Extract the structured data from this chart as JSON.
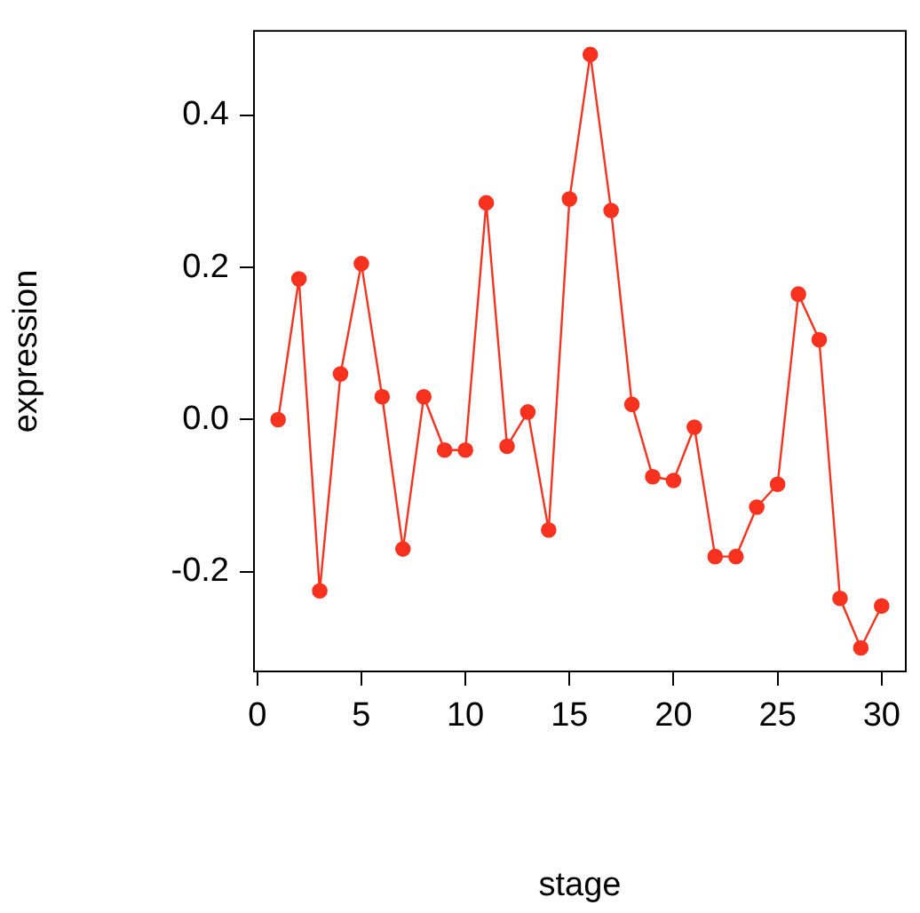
{
  "chart_data": {
    "type": "line",
    "xlabel": "stage",
    "ylabel": "expression",
    "x": [
      1,
      2,
      3,
      4,
      5,
      6,
      7,
      8,
      9,
      10,
      11,
      12,
      13,
      14,
      15,
      16,
      17,
      18,
      19,
      20,
      21,
      22,
      23,
      24,
      25,
      26,
      27,
      28,
      29,
      30
    ],
    "series": [
      {
        "color": "#f8321e",
        "values": [
          0.0,
          0.185,
          -0.225,
          0.06,
          0.205,
          0.03,
          -0.17,
          0.03,
          -0.04,
          -0.04,
          0.285,
          -0.035,
          0.01,
          -0.145,
          0.29,
          0.48,
          0.275,
          0.02,
          -0.075,
          -0.08,
          -0.01,
          -0.18,
          -0.18,
          -0.115,
          -0.085,
          0.165,
          0.105,
          -0.235,
          -0.3,
          -0.245
        ]
      }
    ],
    "xlim": [
      -0.16,
      31.16
    ],
    "ylim": [
      -0.331,
      0.511
    ],
    "xticks": [
      0,
      5,
      10,
      15,
      20,
      25,
      30
    ],
    "yticks": [
      -0.2,
      {
        "value": 0,
        "label": "0.0"
      },
      0.2,
      0.4
    ],
    "grid": false,
    "legend": false,
    "marker": "circle",
    "line_style": "solid"
  }
}
